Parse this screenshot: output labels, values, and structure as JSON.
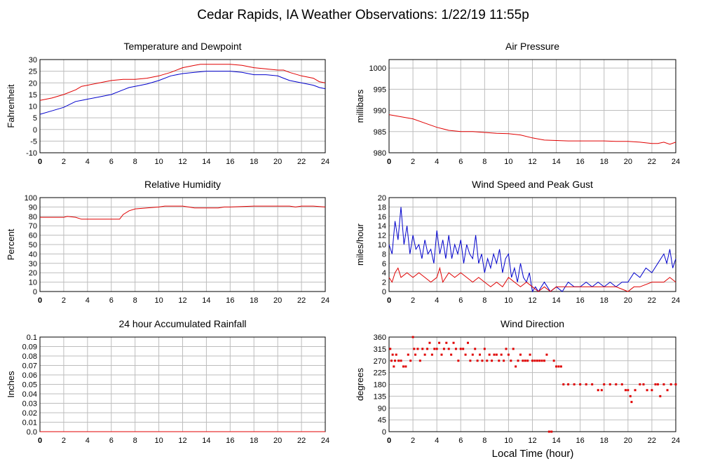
{
  "page": {
    "title": "Cedar Rapids, IA Weather Observations: 1/22/19 11:55p",
    "x_axis_label": "Local Time (hour)"
  },
  "colors": {
    "red": "#e00000",
    "blue": "#0000cc",
    "grid": "#bdbdbd"
  },
  "chart_data": [
    {
      "id": "temp",
      "type": "line",
      "title": "Temperature and Dewpoint",
      "ylabel": "Fahrenheit",
      "xlim": [
        0,
        24
      ],
      "ylim": [
        -10,
        30
      ],
      "xticks": [
        0,
        2,
        4,
        6,
        8,
        10,
        12,
        14,
        16,
        18,
        20,
        22,
        24
      ],
      "yticks": [
        -10,
        -5,
        0,
        5,
        10,
        15,
        20,
        25,
        30
      ],
      "grid": true,
      "series": [
        {
          "color": "red",
          "x": [
            0,
            1,
            2,
            3,
            3.5,
            4,
            5,
            6,
            7,
            8,
            9,
            10,
            11,
            12,
            13,
            13.5,
            14,
            15,
            16,
            17,
            18,
            19,
            20,
            20.5,
            21,
            22,
            23,
            23.5,
            24
          ],
          "y": [
            12.5,
            13.5,
            15,
            17,
            18.5,
            19,
            20,
            21,
            21.5,
            21.5,
            22,
            23,
            24.5,
            26.5,
            27.5,
            28,
            28,
            28,
            28,
            27.5,
            26.5,
            26,
            25.5,
            25.5,
            24.5,
            23,
            22,
            20.5,
            20
          ]
        },
        {
          "color": "blue",
          "x": [
            0,
            1,
            2,
            3,
            3.5,
            4,
            5,
            6,
            7,
            7.5,
            8,
            9,
            10,
            11,
            12,
            13,
            14,
            15,
            16,
            17,
            18,
            19,
            20,
            20.5,
            21,
            22,
            23,
            23.5,
            24
          ],
          "y": [
            6.5,
            8,
            9.5,
            12,
            12.5,
            13,
            14,
            15,
            17,
            18,
            18.5,
            19.5,
            21,
            23,
            24,
            24.5,
            25,
            25,
            25,
            24.5,
            23.5,
            23.5,
            23,
            22,
            21,
            20,
            19,
            18,
            17.5
          ]
        }
      ]
    },
    {
      "id": "pressure",
      "type": "line",
      "title": "Air Pressure",
      "ylabel": "millibars",
      "xlim": [
        0,
        24
      ],
      "ylim": [
        980,
        1002
      ],
      "xticks": [
        0,
        2,
        4,
        6,
        8,
        10,
        12,
        14,
        16,
        18,
        20,
        22,
        24
      ],
      "yticks": [
        980,
        985,
        990,
        995,
        1000
      ],
      "grid": true,
      "series": [
        {
          "color": "red",
          "x": [
            0,
            1,
            2,
            3,
            4,
            5,
            6,
            7,
            8,
            9,
            10,
            11,
            12,
            13,
            14,
            15,
            16,
            17,
            18,
            19,
            20,
            21,
            22,
            22.5,
            23,
            23.5,
            24
          ],
          "y": [
            989,
            988.5,
            988,
            987,
            986,
            985.3,
            985,
            985,
            984.8,
            984.6,
            984.5,
            984.2,
            983.5,
            983,
            982.9,
            982.8,
            982.8,
            982.8,
            982.8,
            982.7,
            982.7,
            982.5,
            982.2,
            982.2,
            982.5,
            982,
            982.5
          ]
        }
      ]
    },
    {
      "id": "humidity",
      "type": "line",
      "title": "Relative Humidity",
      "ylabel": "Percent",
      "xlim": [
        0,
        24
      ],
      "ylim": [
        0,
        100
      ],
      "xticks": [
        0,
        2,
        4,
        6,
        8,
        10,
        12,
        14,
        16,
        18,
        20,
        22,
        24
      ],
      "yticks": [
        0,
        10,
        20,
        30,
        40,
        50,
        60,
        70,
        80,
        90,
        100
      ],
      "grid": true,
      "series": [
        {
          "color": "red",
          "x": [
            0,
            2,
            2.3,
            3,
            3.5,
            4,
            6,
            6.7,
            7,
            7.5,
            8,
            9,
            10,
            10.5,
            12,
            12.5,
            13,
            15,
            15.5,
            16,
            18,
            20,
            21,
            21.5,
            22,
            23,
            24
          ],
          "y": [
            79,
            79,
            80,
            79,
            77,
            77,
            77,
            77,
            82,
            86,
            88,
            89,
            90,
            91,
            91,
            90,
            89,
            89,
            90,
            90,
            91,
            91,
            91,
            90,
            91,
            91,
            90
          ]
        }
      ]
    },
    {
      "id": "wind",
      "type": "line",
      "title": "Wind Speed and Peak Gust",
      "ylabel": "miles/hour",
      "xlim": [
        0,
        24
      ],
      "ylim": [
        0,
        20
      ],
      "xticks": [
        0,
        2,
        4,
        6,
        8,
        10,
        12,
        14,
        16,
        18,
        20,
        22,
        24
      ],
      "yticks": [
        0,
        2,
        4,
        6,
        8,
        10,
        12,
        14,
        16,
        18,
        20
      ],
      "grid": true,
      "series": [
        {
          "color": "blue",
          "x": [
            0,
            0.25,
            0.5,
            0.75,
            1,
            1.25,
            1.5,
            1.75,
            2,
            2.25,
            2.5,
            2.75,
            3,
            3.25,
            3.5,
            3.75,
            4,
            4.25,
            4.5,
            4.75,
            5,
            5.25,
            5.5,
            5.75,
            6,
            6.25,
            6.5,
            6.75,
            7,
            7.25,
            7.5,
            7.75,
            8,
            8.25,
            8.5,
            8.75,
            9,
            9.25,
            9.5,
            9.75,
            10,
            10.25,
            10.5,
            10.75,
            11,
            11.25,
            11.5,
            11.75,
            12,
            12.25,
            12.5,
            13,
            13.5,
            14,
            14.5,
            15,
            15.5,
            16,
            16.5,
            17,
            17.5,
            18,
            18.5,
            19,
            19.5,
            20,
            20.5,
            21,
            21.5,
            22,
            22.5,
            23,
            23.25,
            23.5,
            23.75,
            24
          ],
          "y": [
            10,
            8,
            15,
            11,
            18,
            10,
            14,
            8,
            12,
            9,
            10,
            7,
            11,
            8,
            9,
            6,
            13,
            8,
            11,
            7,
            12,
            7,
            10,
            8,
            11,
            6,
            10,
            8,
            7,
            12,
            6,
            8,
            4,
            7,
            5,
            8,
            6,
            9,
            4,
            7,
            8,
            3,
            5,
            2,
            6,
            3,
            2,
            4,
            0,
            1,
            0,
            2,
            0,
            1,
            0,
            2,
            1,
            1,
            2,
            1,
            2,
            1,
            2,
            1,
            2,
            2,
            4,
            3,
            5,
            4,
            6,
            8,
            6,
            9,
            5,
            7
          ]
        },
        {
          "color": "red",
          "x": [
            0,
            0.25,
            0.5,
            0.75,
            1,
            1.5,
            2,
            2.5,
            3,
            3.5,
            4,
            4.25,
            4.5,
            5,
            5.5,
            6,
            6.5,
            7,
            7.5,
            8,
            8.5,
            9,
            9.5,
            10,
            10.5,
            11,
            11.5,
            12,
            12.5,
            13,
            13.5,
            14,
            15,
            16,
            17,
            18,
            19,
            20,
            20.5,
            21,
            22,
            23,
            23.5,
            24
          ],
          "y": [
            3,
            2,
            4,
            5,
            3,
            4,
            3,
            4,
            3,
            2,
            3,
            5,
            2,
            4,
            3,
            4,
            3,
            2,
            3,
            2,
            1,
            2,
            1,
            3,
            2,
            1,
            2,
            1,
            0,
            1,
            0,
            1,
            1,
            1,
            1,
            1,
            1,
            0,
            1,
            1,
            2,
            2,
            3,
            2
          ]
        }
      ]
    },
    {
      "id": "rain",
      "type": "line",
      "title": "24 hour Accumulated Rainfall",
      "ylabel": "Inches",
      "xlim": [
        0,
        24
      ],
      "ylim": [
        0,
        0.1
      ],
      "xticks": [
        0,
        2,
        4,
        6,
        8,
        10,
        12,
        14,
        16,
        18,
        20,
        22,
        24
      ],
      "yticks": [
        0.0,
        0.01,
        0.02,
        0.03,
        0.04,
        0.05,
        0.06,
        0.07,
        0.08,
        0.09,
        0.1
      ],
      "ytick_labels": [
        "0.0",
        "0.01",
        "0.02",
        "0.03",
        "0.04",
        "0.05",
        "0.06",
        "0.07",
        "0.08",
        "0.09",
        "0.1"
      ],
      "grid": true,
      "series": [
        {
          "color": "red",
          "x": [
            0,
            24
          ],
          "y": [
            0,
            0
          ]
        }
      ]
    },
    {
      "id": "direction",
      "type": "scatter",
      "title": "Wind Direction",
      "ylabel": "degrees",
      "xlim": [
        0,
        24
      ],
      "ylim": [
        0,
        360
      ],
      "xticks": [
        0,
        2,
        4,
        6,
        8,
        10,
        12,
        14,
        16,
        18,
        20,
        22,
        24
      ],
      "yticks": [
        0,
        45,
        90,
        135,
        180,
        225,
        270,
        315,
        360
      ],
      "grid": true,
      "series": [
        {
          "color": "red",
          "x": [
            0.1,
            0.2,
            0.3,
            0.4,
            0.5,
            0.6,
            0.8,
            1.0,
            1.2,
            1.4,
            1.6,
            1.8,
            2.0,
            2.1,
            2.2,
            2.4,
            2.6,
            2.8,
            3.0,
            3.2,
            3.4,
            3.6,
            3.8,
            4.0,
            4.2,
            4.4,
            4.6,
            4.8,
            5.0,
            5.2,
            5.4,
            5.6,
            5.8,
            6.0,
            6.2,
            6.4,
            6.6,
            6.8,
            7.0,
            7.2,
            7.4,
            7.6,
            7.8,
            8.0,
            8.2,
            8.4,
            8.6,
            8.8,
            9.0,
            9.2,
            9.4,
            9.6,
            9.8,
            10.0,
            10.2,
            10.4,
            10.6,
            10.8,
            11.0,
            11.2,
            11.4,
            11.6,
            11.8,
            12.0,
            12.2,
            12.4,
            12.6,
            12.8,
            13.0,
            13.2,
            13.4,
            13.6,
            13.8,
            14.0,
            14.2,
            14.4,
            14.6,
            15.0,
            15.5,
            16.0,
            16.5,
            17.0,
            17.5,
            17.8,
            18.0,
            18.5,
            19.0,
            19.5,
            19.8,
            20.0,
            20.2,
            20.3,
            20.6,
            21.0,
            21.3,
            21.6,
            22.0,
            22.3,
            22.5,
            22.7,
            23.0,
            23.3,
            23.6,
            24.0
          ],
          "y": [
            315,
            270,
            293,
            248,
            270,
            293,
            270,
            270,
            248,
            248,
            293,
            270,
            360,
            315,
            293,
            315,
            270,
            315,
            293,
            315,
            338,
            293,
            315,
            315,
            338,
            293,
            315,
            338,
            315,
            293,
            338,
            315,
            270,
            315,
            315,
            293,
            338,
            270,
            293,
            315,
            270,
            293,
            270,
            315,
            270,
            293,
            270,
            293,
            293,
            270,
            293,
            270,
            315,
            293,
            270,
            315,
            248,
            270,
            293,
            270,
            270,
            270,
            293,
            270,
            270,
            270,
            270,
            270,
            270,
            293,
            0,
            0,
            270,
            248,
            248,
            248,
            180,
            180,
            180,
            180,
            180,
            180,
            158,
            158,
            180,
            180,
            180,
            180,
            158,
            158,
            135,
            113,
            158,
            180,
            180,
            158,
            158,
            180,
            180,
            135,
            180,
            158,
            180,
            180
          ]
        }
      ]
    }
  ]
}
